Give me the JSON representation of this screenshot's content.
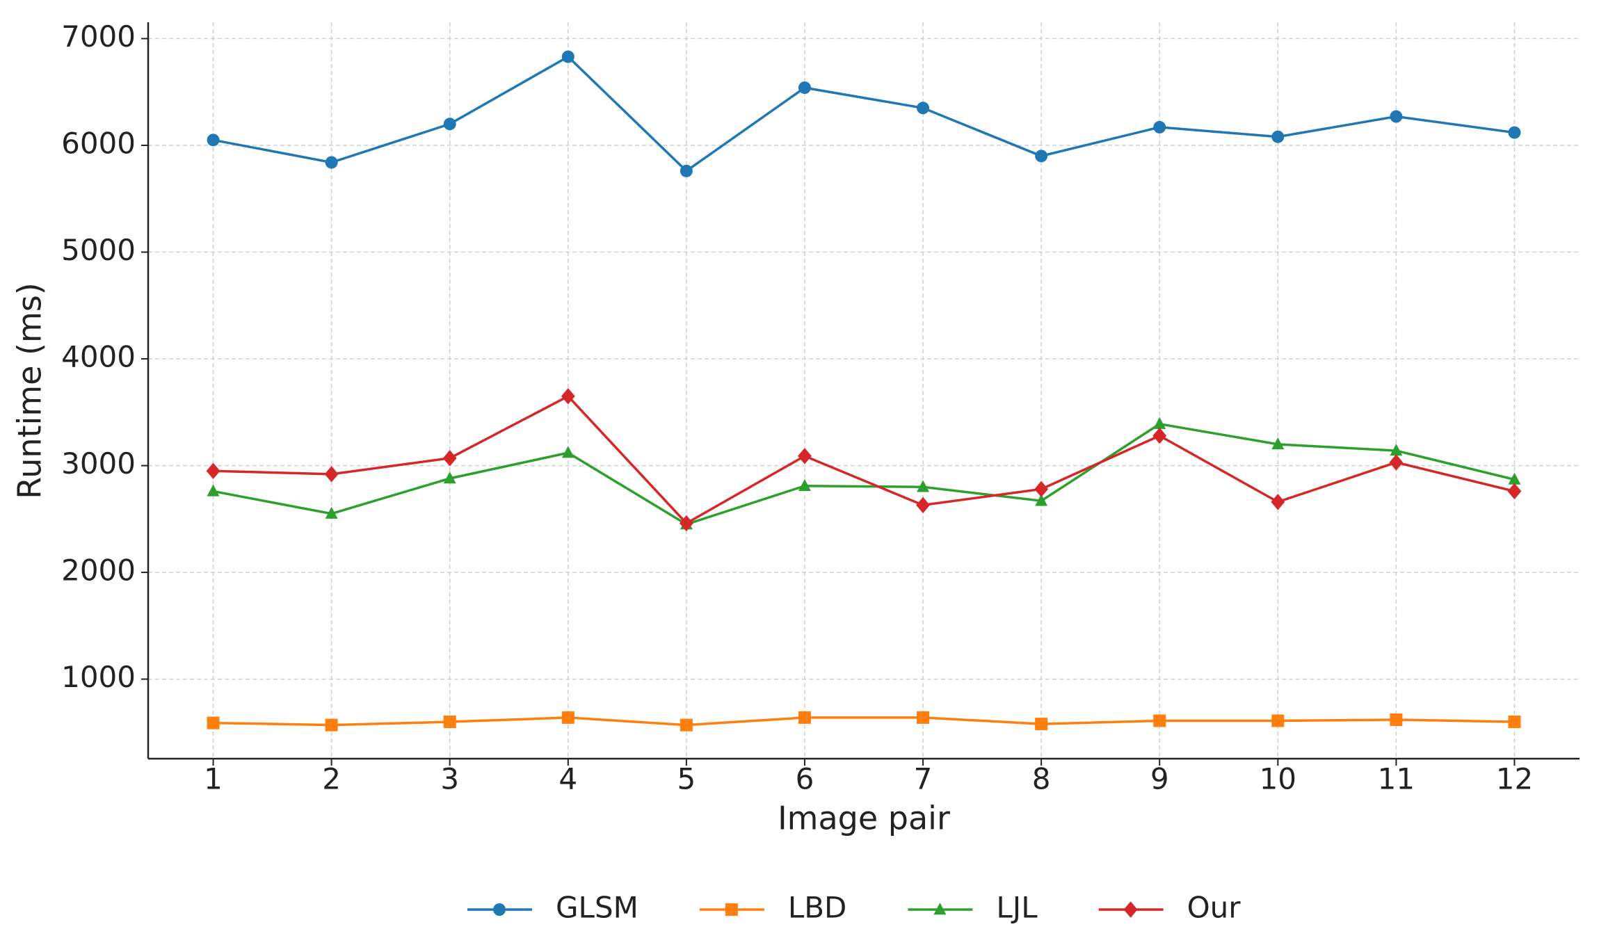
{
  "chart_data": {
    "type": "line",
    "x_label": "Image pair",
    "y_label": "Runtime (ms)",
    "x": [
      1,
      2,
      3,
      4,
      5,
      6,
      7,
      8,
      9,
      10,
      11,
      12
    ],
    "series": [
      {
        "name": "GLSM",
        "color": "#1f77b4",
        "marker": "circle",
        "values": [
          6050,
          5840,
          6200,
          6830,
          5760,
          6540,
          6350,
          5900,
          6170,
          6080,
          6270,
          6120
        ]
      },
      {
        "name": "LBD",
        "color": "#ff7f0e",
        "marker": "square",
        "values": [
          590,
          570,
          600,
          640,
          570,
          640,
          640,
          580,
          610,
          610,
          620,
          600
        ]
      },
      {
        "name": "LJL",
        "color": "#2ca02c",
        "marker": "triangle",
        "values": [
          2760,
          2550,
          2880,
          3120,
          2450,
          2810,
          2800,
          2670,
          3390,
          3200,
          3140,
          2870
        ]
      },
      {
        "name": "Our",
        "color": "#d62728",
        "marker": "diamond",
        "values": [
          2950,
          2920,
          3070,
          3650,
          2460,
          3090,
          2630,
          2780,
          3280,
          2660,
          3030,
          2760
        ]
      }
    ],
    "xlim": [
      0.45,
      12.55
    ],
    "xticks": [
      1,
      2,
      3,
      4,
      5,
      6,
      7,
      8,
      9,
      10,
      11,
      12
    ],
    "ylim": [
      255,
      7153
    ],
    "yticks": [
      1000,
      2000,
      3000,
      4000,
      5000,
      6000,
      7000
    ],
    "grid": true,
    "legend": "bottom"
  }
}
